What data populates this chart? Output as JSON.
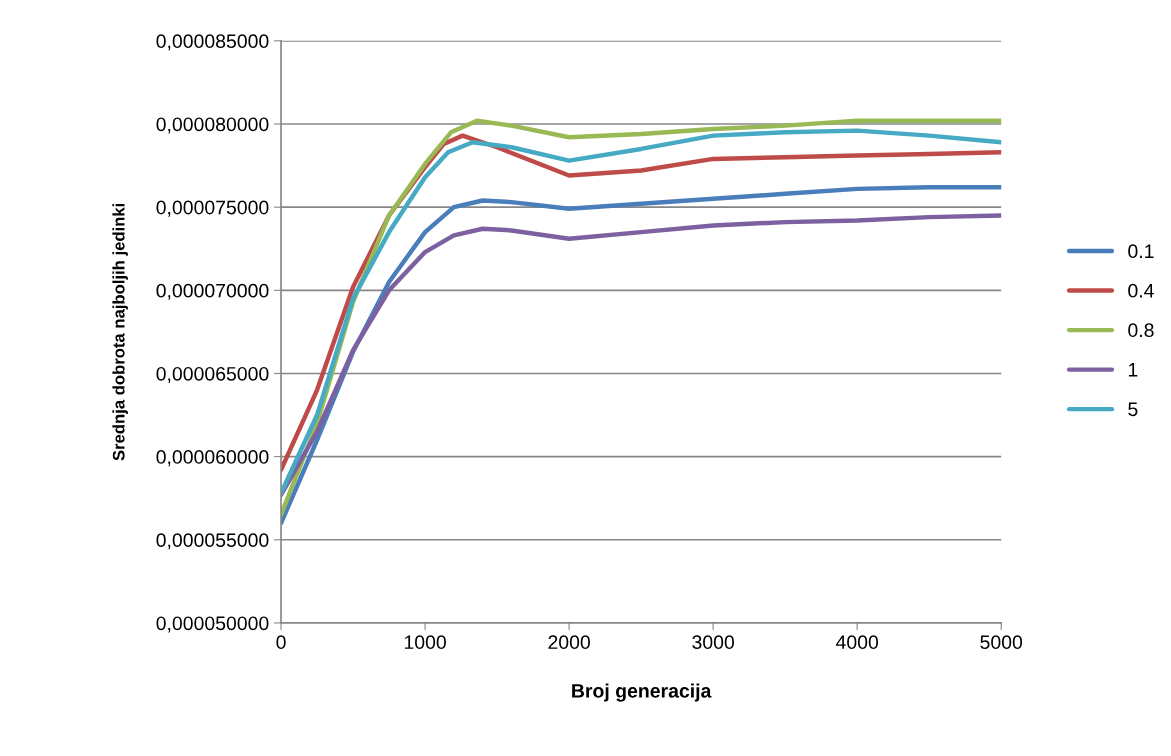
{
  "chart_data": {
    "type": "line",
    "xlabel": "Broj generacija",
    "ylabel": "Srednja dobrota najboljih jedinki",
    "xlim": [
      0,
      5000
    ],
    "xticks": [
      0,
      1000,
      2000,
      3000,
      4000,
      5000
    ],
    "ylim": [
      5e-05,
      8.5e-05
    ],
    "yticks": [
      {
        "value": 5e-05,
        "label": "0,000050000"
      },
      {
        "value": 5.5e-05,
        "label": "0,000055000"
      },
      {
        "value": 6e-05,
        "label": "0,000060000"
      },
      {
        "value": 6.5e-05,
        "label": "0,000065000"
      },
      {
        "value": 7e-05,
        "label": "0,000070000"
      },
      {
        "value": 7.5e-05,
        "label": "0,000075000"
      },
      {
        "value": 8e-05,
        "label": "0,000080000"
      },
      {
        "value": 8.5e-05,
        "label": "0,000085000"
      }
    ],
    "grid": "y",
    "legend": "right",
    "marker": "none",
    "line_style": "solid",
    "series": [
      {
        "name": "0.1",
        "color": "#4a7ebb",
        "x": [
          0,
          250,
          500,
          750,
          1000,
          1200,
          1400,
          1600,
          2000,
          2500,
          3000,
          3500,
          4000,
          4500,
          5000
        ],
        "values": [
          5.6e-05,
          6.1e-05,
          6.63e-05,
          7.05e-05,
          7.35e-05,
          7.5e-05,
          7.54e-05,
          7.53e-05,
          7.49e-05,
          7.52e-05,
          7.55e-05,
          7.58e-05,
          7.61e-05,
          7.62e-05,
          7.62e-05
        ]
      },
      {
        "name": "0.4",
        "color": "#be4b48",
        "x": [
          0,
          250,
          500,
          750,
          1000,
          1130,
          1260,
          1500,
          2000,
          2500,
          3000,
          3500,
          4000,
          4500,
          5000
        ],
        "values": [
          5.92e-05,
          6.4e-05,
          7.02e-05,
          7.45e-05,
          7.74e-05,
          7.88e-05,
          7.93e-05,
          7.86e-05,
          7.69e-05,
          7.72e-05,
          7.79e-05,
          7.8e-05,
          7.81e-05,
          7.82e-05,
          7.83e-05
        ]
      },
      {
        "name": "0.8",
        "color": "#98b954",
        "x": [
          0,
          250,
          500,
          750,
          1000,
          1180,
          1360,
          1600,
          2000,
          2500,
          3000,
          3500,
          4000,
          4500,
          5000
        ],
        "values": [
          5.65e-05,
          6.2e-05,
          6.93e-05,
          7.45e-05,
          7.76e-05,
          7.95e-05,
          8.02e-05,
          7.99e-05,
          7.92e-05,
          7.94e-05,
          7.97e-05,
          7.99e-05,
          8.02e-05,
          8.02e-05,
          8.02e-05
        ]
      },
      {
        "name": "1",
        "color": "#7d60a0",
        "x": [
          0,
          250,
          500,
          750,
          1000,
          1200,
          1400,
          1600,
          2000,
          2500,
          3000,
          3500,
          4000,
          4500,
          5000
        ],
        "values": [
          5.77e-05,
          6.15e-05,
          6.64e-05,
          7e-05,
          7.23e-05,
          7.33e-05,
          7.37e-05,
          7.36e-05,
          7.31e-05,
          7.35e-05,
          7.39e-05,
          7.41e-05,
          7.42e-05,
          7.44e-05,
          7.45e-05
        ]
      },
      {
        "name": "5",
        "color": "#46aac5",
        "x": [
          0,
          250,
          500,
          750,
          1000,
          1160,
          1330,
          1600,
          2000,
          2500,
          3000,
          3500,
          4000,
          4500,
          5000
        ],
        "values": [
          5.78e-05,
          6.25e-05,
          6.95e-05,
          7.35e-05,
          7.68e-05,
          7.83e-05,
          7.89e-05,
          7.86e-05,
          7.78e-05,
          7.85e-05,
          7.93e-05,
          7.95e-05,
          7.96e-05,
          7.93e-05,
          7.89e-05
        ]
      }
    ]
  }
}
